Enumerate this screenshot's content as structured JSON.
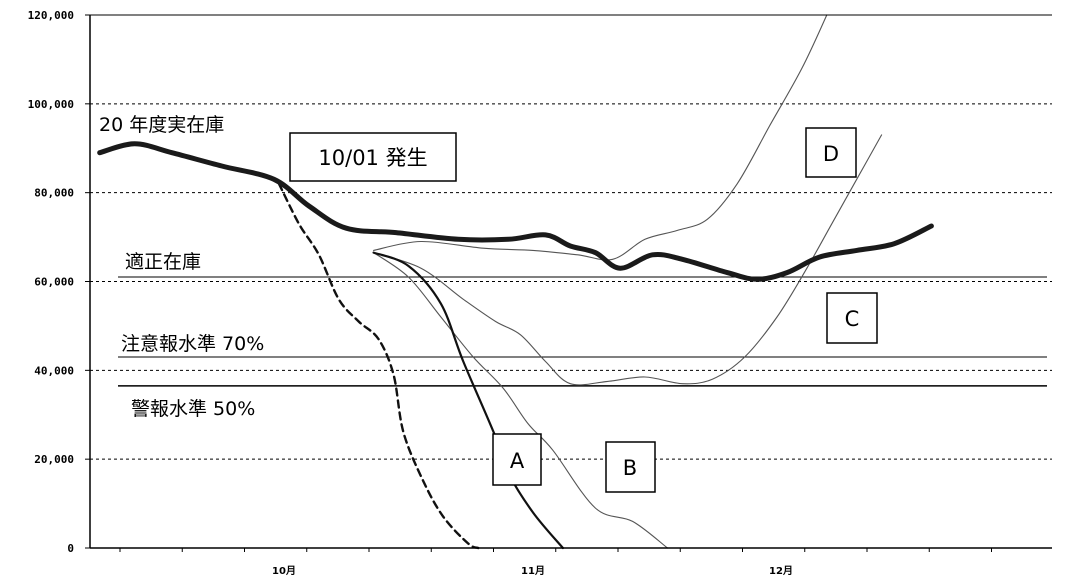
{
  "chart_data": {
    "type": "line",
    "title": "",
    "xlabel": "",
    "ylabel": "",
    "x_ticks": [
      "10月",
      "11月",
      "12月"
    ],
    "ylim": [
      0,
      120000
    ],
    "y_ticks": [
      "0",
      "20,000",
      "40,000",
      "60,000",
      "80,000",
      "100,000",
      "120,000"
    ],
    "y_tick_values": [
      0,
      20000,
      40000,
      60000,
      80000,
      100000,
      120000
    ],
    "grid": "horizontal dotted",
    "series": [
      {
        "name": "20 年度実在庫",
        "style": "thick",
        "points": [
          [
            -0.74,
            89000
          ],
          [
            -0.6,
            91000
          ],
          [
            -0.45,
            89000
          ],
          [
            -0.25,
            86000
          ],
          [
            -0.04,
            83000
          ],
          [
            0.1,
            77000
          ],
          [
            0.25,
            72000
          ],
          [
            0.45,
            71000
          ],
          [
            0.7,
            69500
          ],
          [
            0.9,
            69500
          ],
          [
            1.05,
            70500
          ],
          [
            1.15,
            68000
          ],
          [
            1.25,
            66500
          ],
          [
            1.35,
            63000
          ],
          [
            1.48,
            66000
          ],
          [
            1.6,
            65000
          ],
          [
            1.78,
            62000
          ],
          [
            1.9,
            60500
          ],
          [
            2.02,
            62000
          ],
          [
            2.15,
            65500
          ],
          [
            2.3,
            67000
          ],
          [
            2.45,
            68500
          ],
          [
            2.6,
            72500
          ]
        ]
      },
      {
        "name": "A",
        "style": "solid",
        "points": [
          [
            0.36,
            66500
          ],
          [
            0.5,
            63500
          ],
          [
            0.63,
            55000
          ],
          [
            0.72,
            42000
          ],
          [
            0.85,
            25000
          ],
          [
            0.9,
            17000
          ],
          [
            1.0,
            8000
          ],
          [
            1.12,
            0
          ]
        ]
      },
      {
        "name": "B",
        "style": "thin",
        "points": [
          [
            0.36,
            66500
          ],
          [
            0.5,
            61000
          ],
          [
            0.63,
            52000
          ],
          [
            0.76,
            43000
          ],
          [
            0.88,
            36000
          ],
          [
            0.98,
            28000
          ],
          [
            1.08,
            22000
          ],
          [
            1.25,
            9000
          ],
          [
            1.4,
            6000
          ],
          [
            1.54,
            0
          ]
        ]
      },
      {
        "name": "C",
        "style": "thin",
        "points": [
          [
            0.36,
            66500
          ],
          [
            0.55,
            63000
          ],
          [
            0.72,
            56000
          ],
          [
            0.85,
            51000
          ],
          [
            0.95,
            48000
          ],
          [
            1.05,
            42000
          ],
          [
            1.15,
            37000
          ],
          [
            1.3,
            37500
          ],
          [
            1.45,
            38500
          ],
          [
            1.6,
            37000
          ],
          [
            1.72,
            38000
          ],
          [
            1.85,
            43000
          ],
          [
            1.98,
            52000
          ],
          [
            2.1,
            63000
          ],
          [
            2.2,
            73000
          ],
          [
            2.3,
            83000
          ],
          [
            2.4,
            93000
          ]
        ]
      },
      {
        "name": "D",
        "style": "thin",
        "points": [
          [
            0.36,
            67000
          ],
          [
            0.55,
            69000
          ],
          [
            0.8,
            67500
          ],
          [
            1.0,
            67000
          ],
          [
            1.18,
            66000
          ],
          [
            1.32,
            65000
          ],
          [
            1.45,
            69500
          ],
          [
            1.58,
            71500
          ],
          [
            1.7,
            74000
          ],
          [
            1.82,
            82000
          ],
          [
            1.95,
            95000
          ],
          [
            2.08,
            108000
          ],
          [
            2.18,
            120000
          ]
        ]
      },
      {
        "name": "",
        "style": "dashed",
        "points": [
          [
            -0.02,
            82000
          ],
          [
            0.06,
            73000
          ],
          [
            0.14,
            66000
          ],
          [
            0.22,
            56000
          ],
          [
            0.3,
            51000
          ],
          [
            0.38,
            47000
          ],
          [
            0.44,
            39000
          ],
          [
            0.48,
            26000
          ],
          [
            0.56,
            15000
          ],
          [
            0.64,
            7000
          ],
          [
            0.74,
            1000
          ],
          [
            0.78,
            0
          ]
        ]
      }
    ],
    "reference_lines": [
      {
        "label": "適正在庫",
        "value": 61000
      },
      {
        "label": "注意報水準 70%",
        "value": 43000
      },
      {
        "label": "警報水準 50%",
        "value": 36500
      }
    ],
    "annotations": [
      {
        "text": "10/01 発生",
        "boxed": true
      },
      {
        "text": "A",
        "boxed": true,
        "series": "A"
      },
      {
        "text": "B",
        "boxed": true,
        "series": "B"
      },
      {
        "text": "C",
        "boxed": true,
        "series": "C"
      },
      {
        "text": "D",
        "boxed": true,
        "series": "D"
      }
    ]
  }
}
